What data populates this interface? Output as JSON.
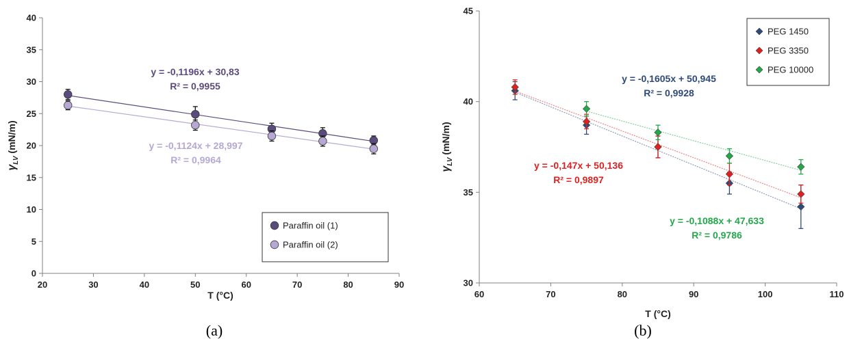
{
  "chart_data": [
    {
      "type": "scatter",
      "caption": "(a)",
      "xlabel": "T (°C)",
      "ylabel": {
        "symbol": "γ",
        "subscript": "LV",
        "unit": " (mN/m)"
      },
      "xlim": [
        20,
        90
      ],
      "ylim": [
        0,
        40
      ],
      "xticks": [
        "20",
        "30",
        "40",
        "50",
        "60",
        "70",
        "80",
        "90"
      ],
      "yticks": [
        "0",
        "5",
        "10",
        "15",
        "20",
        "25",
        "30",
        "35",
        "40"
      ],
      "grid": false,
      "legend_position": "bottom-right",
      "series": [
        {
          "name": "Paraffin oil (1)",
          "color": "#5b4a7e",
          "marker": "circle",
          "x": [
            25,
            50,
            65,
            75,
            85
          ],
          "y": [
            28.0,
            24.9,
            22.6,
            21.9,
            20.8
          ],
          "err": [
            0.8,
            1.2,
            0.9,
            0.9,
            0.7
          ],
          "fit": {
            "slope": -0.1196,
            "intercept": 30.83
          },
          "equation": "y = -0,1196x + 30,83",
          "r2": "R² = 0,9955"
        },
        {
          "name": "Paraffin oil (2)",
          "color": "#b6a8d2",
          "marker": "circle",
          "x": [
            25,
            50,
            65,
            75,
            85
          ],
          "y": [
            26.3,
            23.2,
            21.5,
            20.7,
            19.5
          ],
          "err": [
            0.7,
            0.8,
            0.8,
            0.8,
            0.8
          ],
          "fit": {
            "slope": -0.1124,
            "intercept": 28.997
          },
          "equation": "y = -0,1124x + 28,997",
          "r2": "R² = 0,9964"
        }
      ]
    },
    {
      "type": "scatter",
      "caption": "(b)",
      "xlabel": "T (°C)",
      "ylabel": {
        "symbol": "γ",
        "subscript": "LV",
        "unit": " (mN/m)"
      },
      "xlim": [
        60,
        110
      ],
      "ylim": [
        30,
        45
      ],
      "xticks": [
        "60",
        "70",
        "80",
        "90",
        "100",
        "110"
      ],
      "yticks": [
        "30",
        "35",
        "40",
        "45"
      ],
      "grid": false,
      "legend_position": "top-right",
      "series": [
        {
          "name": "PEG 1450",
          "color": "#2e4a7a",
          "marker": "diamond",
          "x": [
            65,
            75,
            85,
            95,
            105
          ],
          "y": [
            40.6,
            38.7,
            37.5,
            35.5,
            34.2
          ],
          "err": [
            0.5,
            0.5,
            0.6,
            0.6,
            1.2
          ],
          "fit": {
            "slope": -0.1605,
            "intercept": 50.945
          },
          "equation": "y = -0,1605x + 50,945",
          "r2": "R² = 0,9928"
        },
        {
          "name": "PEG 3350",
          "color": "#e02020",
          "marker": "diamond",
          "x": [
            65,
            75,
            85,
            95,
            105
          ],
          "y": [
            40.8,
            38.9,
            37.5,
            36.0,
            34.9
          ],
          "err": [
            0.4,
            0.4,
            0.6,
            0.6,
            0.5
          ],
          "fit": {
            "slope": -0.147,
            "intercept": 50.136
          },
          "equation": "y = -0,147x + 50,136",
          "r2": "R² = 0,9897"
        },
        {
          "name": "PEG 10000",
          "color": "#22a84a",
          "marker": "diamond",
          "x": [
            75,
            85,
            95,
            105
          ],
          "y": [
            39.6,
            38.3,
            37.0,
            36.4
          ],
          "err": [
            0.4,
            0.4,
            0.4,
            0.4
          ],
          "fit": {
            "slope": -0.1088,
            "intercept": 47.633
          },
          "equation": "y = -0,1088x + 47,633",
          "r2": "R² = 0,9786"
        }
      ]
    }
  ]
}
